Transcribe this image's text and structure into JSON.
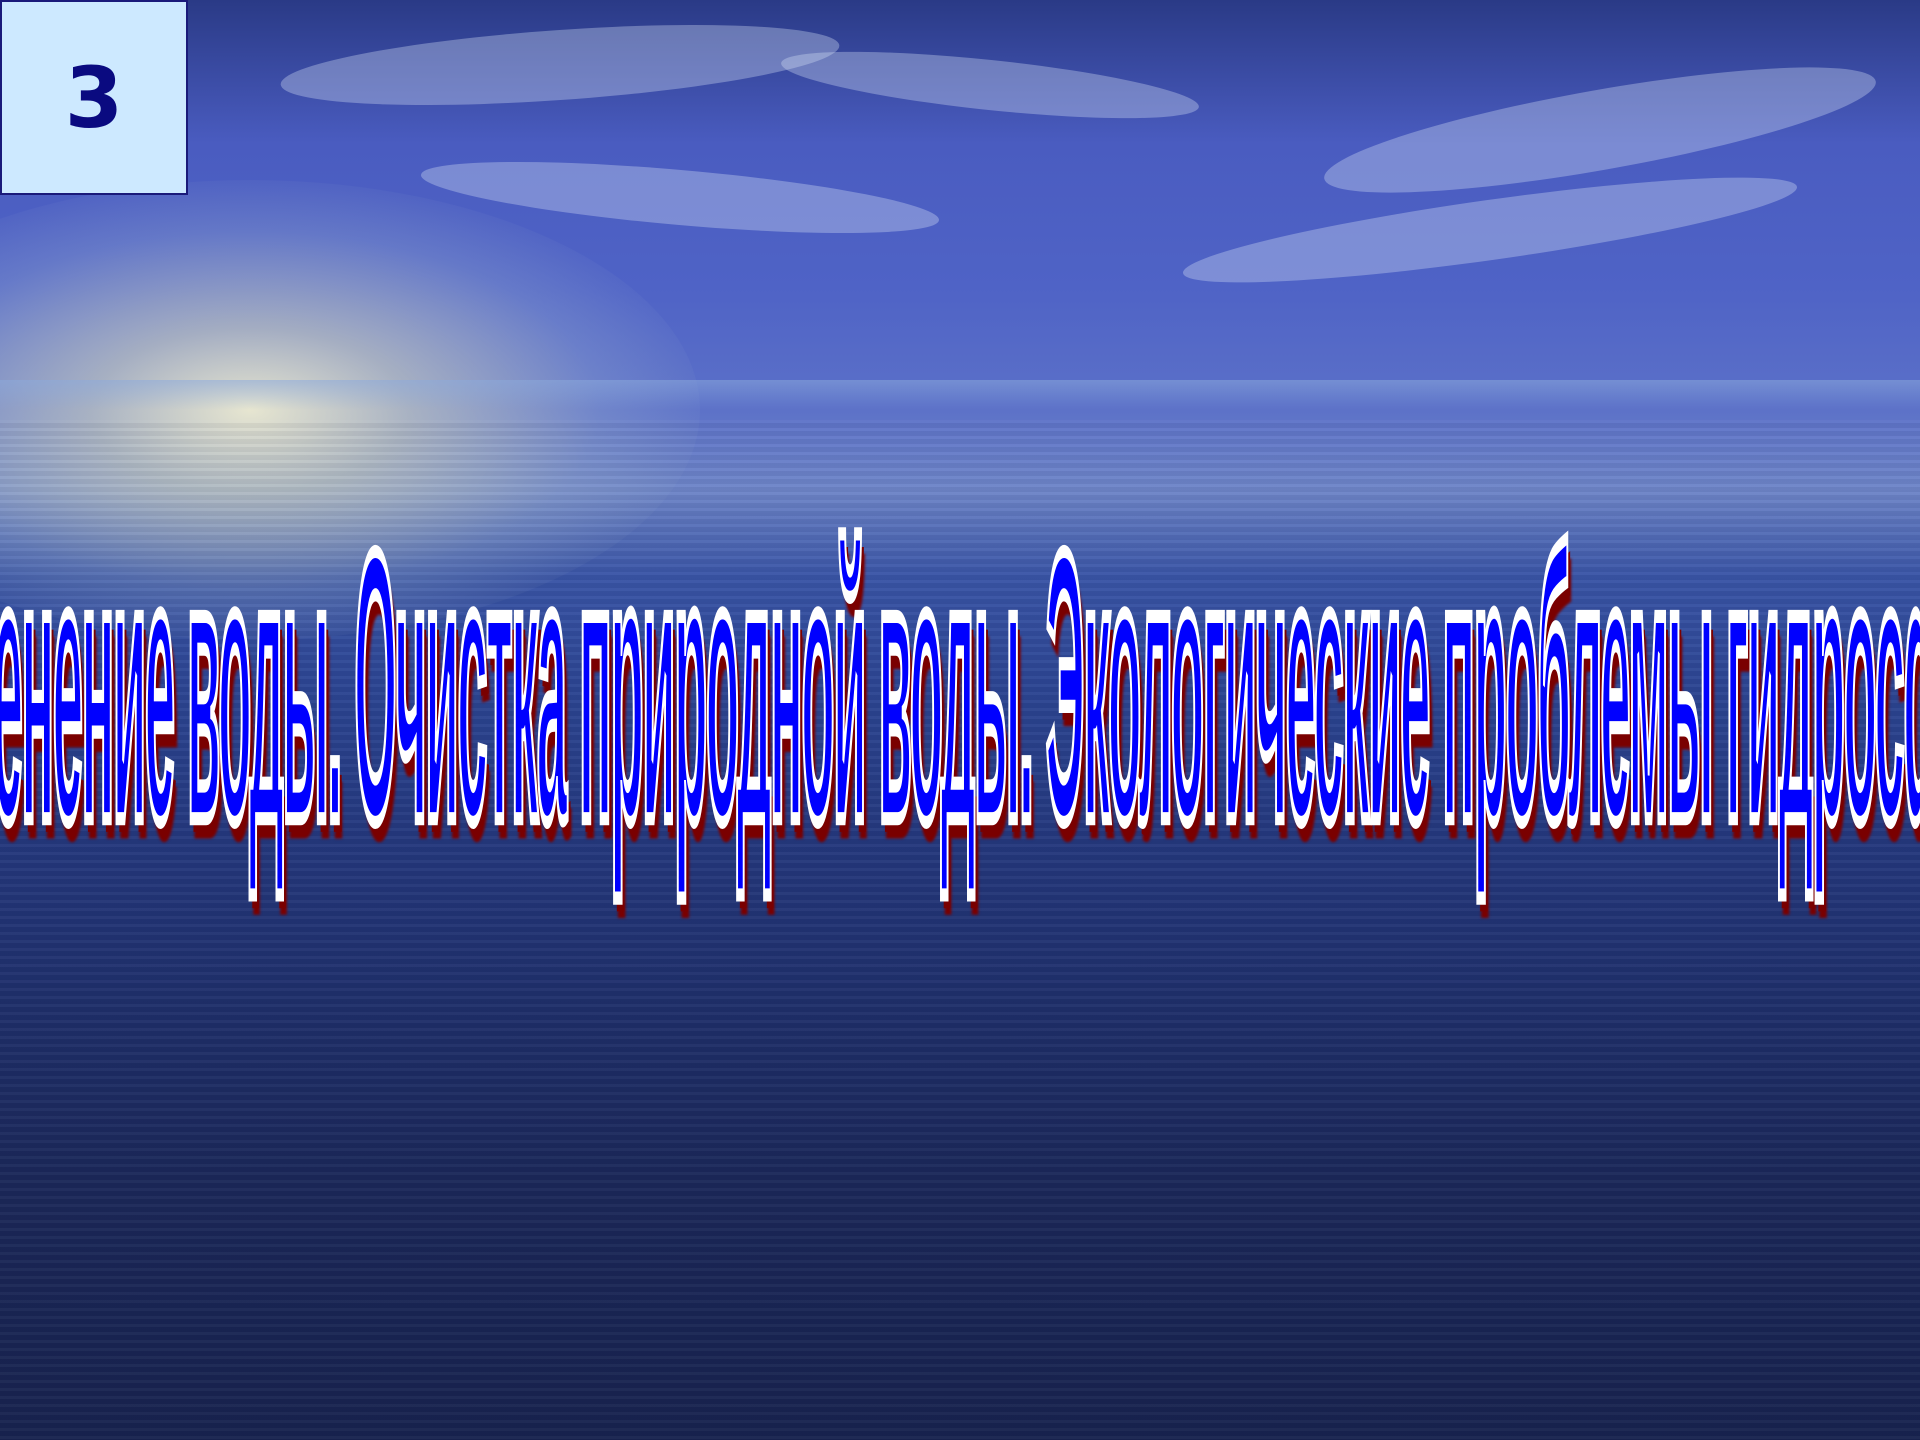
{
  "slide": {
    "number": "3",
    "title": "Применение воды. Очистка природной воды. Экологические проблемы гидросферы."
  },
  "colors": {
    "title_fill": "#0000ff",
    "title_outline": "#ffffff",
    "title_shadow": "#7a0000",
    "badge_background": "#cde9ff",
    "badge_text": "#0a0a80"
  }
}
